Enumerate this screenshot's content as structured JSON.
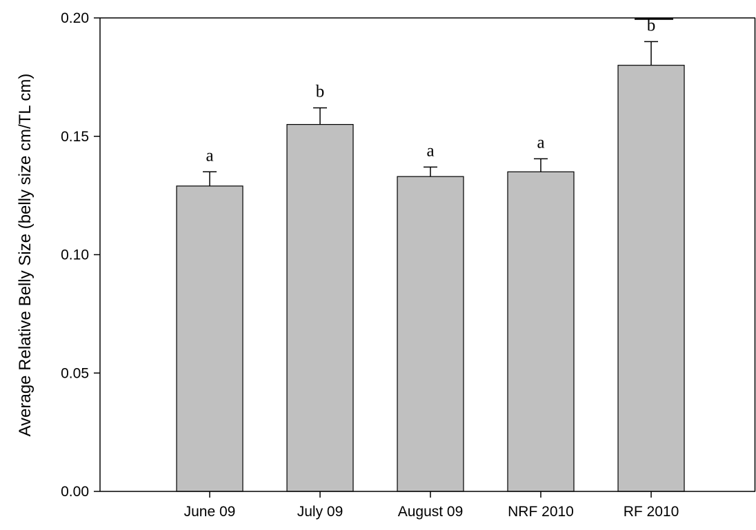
{
  "chart_data": {
    "type": "bar",
    "title": "",
    "xlabel": "",
    "ylabel": "Average Relative Belly Size (belly size cm/TL cm)",
    "ylim": [
      0,
      0.2
    ],
    "yticks": [
      "0.00",
      "0.05",
      "0.10",
      "0.15",
      "0.20"
    ],
    "grid": false,
    "bar_color": "#c0c0c0",
    "categories": [
      "June 09",
      "July 09",
      "August 09",
      "NRF 2010",
      "RF 2010"
    ],
    "values": [
      0.129,
      0.155,
      0.133,
      0.135,
      0.18
    ],
    "errors": [
      0.006,
      0.007,
      0.004,
      0.0055,
      0.01
    ],
    "significance": [
      "a",
      "b",
      "a",
      "a",
      "b"
    ]
  }
}
